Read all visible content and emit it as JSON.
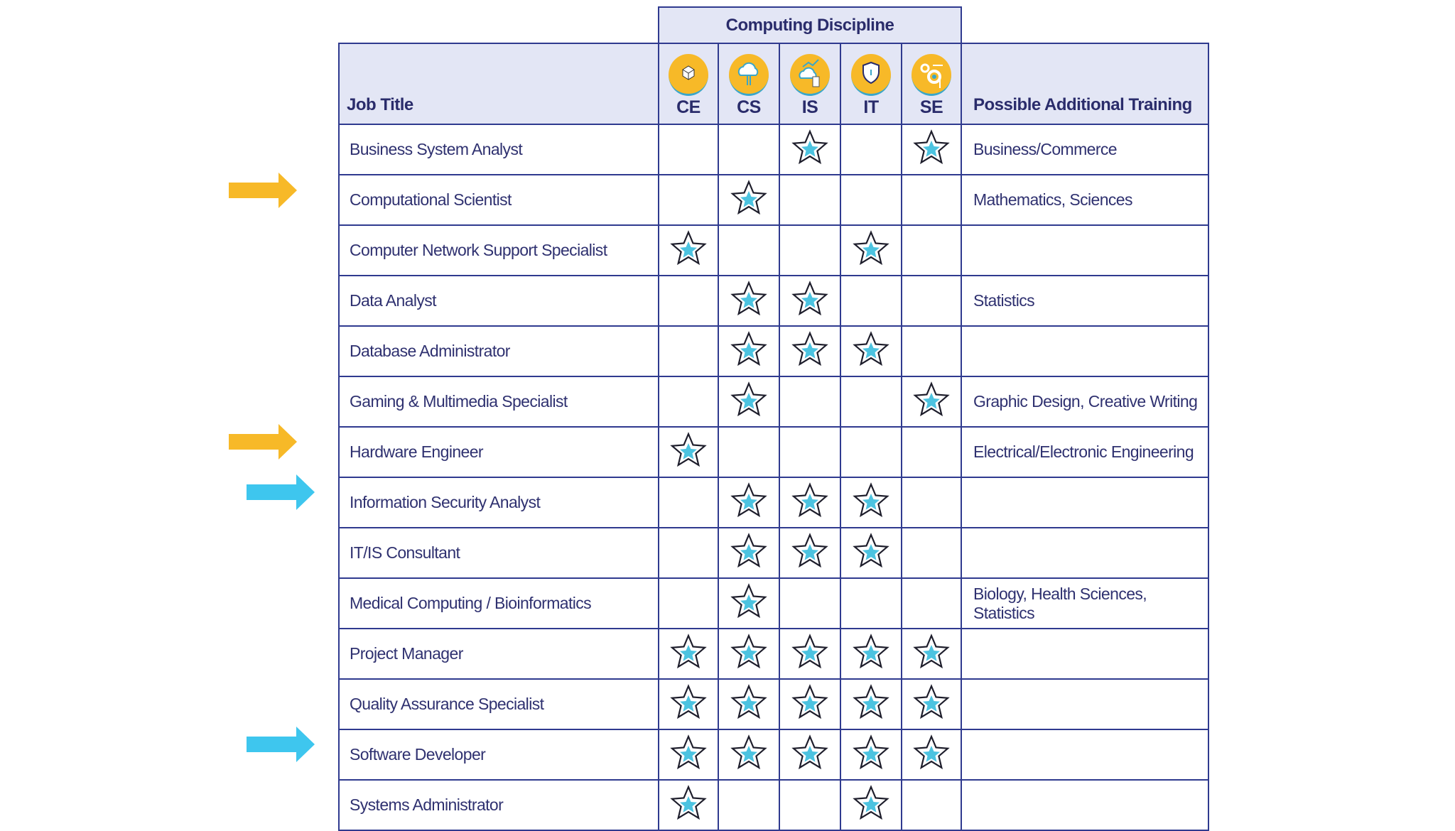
{
  "header": {
    "discipline": "Computing Discipline",
    "job_title": "Job Title",
    "training": "Possible Additional Training"
  },
  "disciplines": [
    {
      "code": "CE",
      "icon": "hardware-cube-icon"
    },
    {
      "code": "CS",
      "icon": "cloud-circuit-icon"
    },
    {
      "code": "IS",
      "icon": "cloud-database-icon"
    },
    {
      "code": "IT",
      "icon": "shield-icon"
    },
    {
      "code": "SE",
      "icon": "gears-icon"
    }
  ],
  "colors": {
    "border": "#2f3a8f",
    "header_bg": "#e3e6f5",
    "star_fill": "#4cc3e0",
    "arrow_yellow": "#f7b928",
    "arrow_blue": "#3ec6ee"
  },
  "rows": [
    {
      "title": "Business System Analyst",
      "marks": [
        0,
        0,
        1,
        0,
        1
      ],
      "training": "Business/Commerce",
      "arrow": ""
    },
    {
      "title": "Computational Scientist",
      "marks": [
        0,
        1,
        0,
        0,
        0
      ],
      "training": "Mathematics, Sciences",
      "arrow": "yellow"
    },
    {
      "title": "Computer Network Support Specialist",
      "marks": [
        1,
        0,
        0,
        1,
        0
      ],
      "training": "",
      "arrow": ""
    },
    {
      "title": "Data Analyst",
      "marks": [
        0,
        1,
        1,
        0,
        0
      ],
      "training": "Statistics",
      "arrow": ""
    },
    {
      "title": "Database Administrator",
      "marks": [
        0,
        1,
        1,
        1,
        0
      ],
      "training": "",
      "arrow": ""
    },
    {
      "title": "Gaming & Multimedia Specialist",
      "marks": [
        0,
        1,
        0,
        0,
        1
      ],
      "training": "Graphic Design, Creative Writing",
      "arrow": ""
    },
    {
      "title": "Hardware Engineer",
      "marks": [
        1,
        0,
        0,
        0,
        0
      ],
      "training": "Electrical/Electronic Engineering",
      "arrow": "yellow"
    },
    {
      "title": "Information Security Analyst",
      "marks": [
        0,
        1,
        1,
        1,
        0
      ],
      "training": "",
      "arrow": "blue"
    },
    {
      "title": "IT/IS Consultant",
      "marks": [
        0,
        1,
        1,
        1,
        0
      ],
      "training": "",
      "arrow": ""
    },
    {
      "title": "Medical Computing / Bioinformatics",
      "marks": [
        0,
        1,
        0,
        0,
        0
      ],
      "training": "Biology, Health Sciences, Statistics",
      "arrow": ""
    },
    {
      "title": "Project Manager",
      "marks": [
        1,
        1,
        1,
        1,
        1
      ],
      "training": "",
      "arrow": ""
    },
    {
      "title": "Quality Assurance Specialist",
      "marks": [
        1,
        1,
        1,
        1,
        1
      ],
      "training": "",
      "arrow": ""
    },
    {
      "title": "Software Developer",
      "marks": [
        1,
        1,
        1,
        1,
        1
      ],
      "training": "",
      "arrow": "blue"
    },
    {
      "title": "Systems Administrator",
      "marks": [
        1,
        0,
        0,
        1,
        0
      ],
      "training": "",
      "arrow": ""
    }
  ]
}
